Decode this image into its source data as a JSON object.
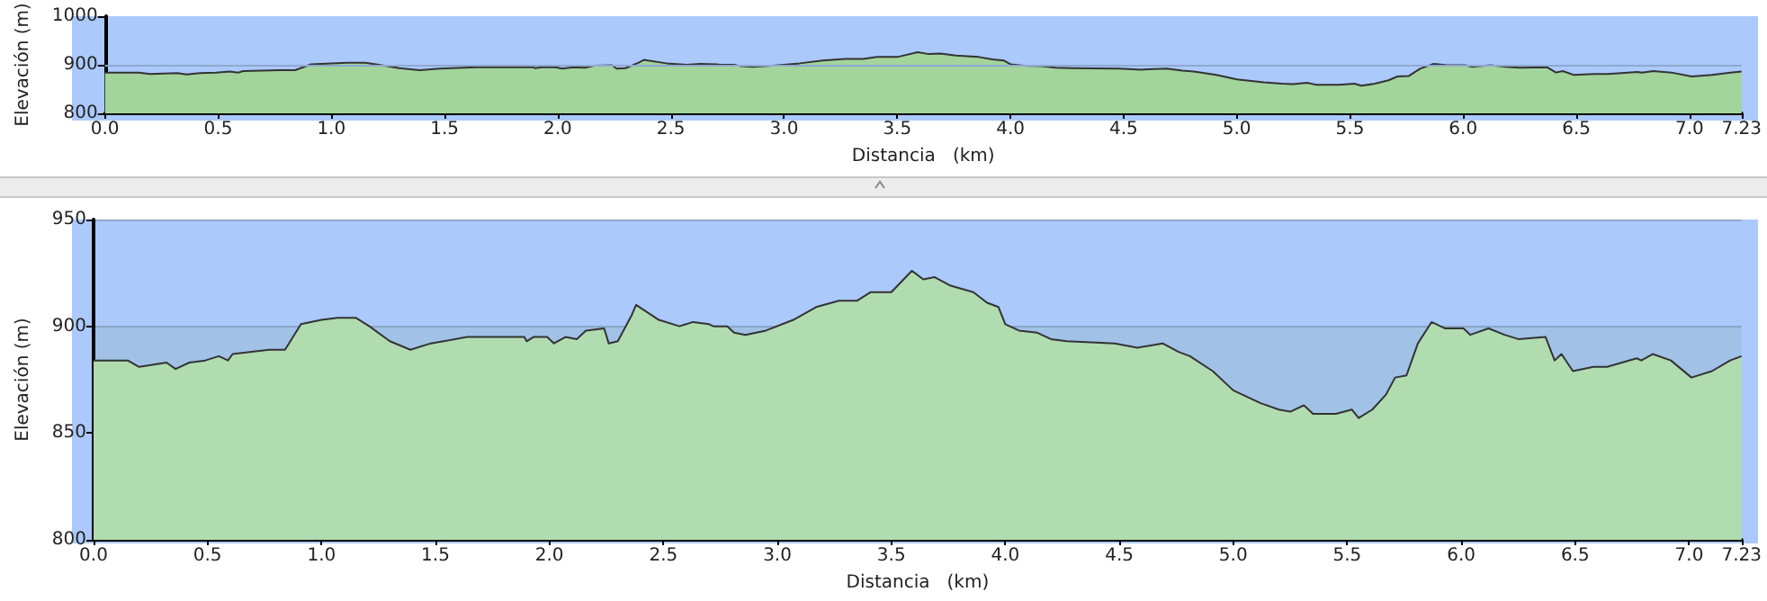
{
  "chart_data": [
    {
      "type": "area",
      "xlabel": "Distancia   (km)",
      "ylabel": "Elevación (m)",
      "xlim": [
        0,
        7.23
      ],
      "ylim": [
        800,
        1000
      ],
      "xticks": [
        {
          "value": 0,
          "label": "0.0"
        },
        0.5,
        {
          "value": 1,
          "label": "1.0"
        },
        1.5,
        {
          "value": 2,
          "label": "2.0"
        },
        2.5,
        {
          "value": 3,
          "label": "3.0"
        },
        3.5,
        {
          "value": 4,
          "label": "4.0"
        },
        4.5,
        {
          "value": 5,
          "label": "5.0"
        },
        5.5,
        {
          "value": 6,
          "label": "6.0"
        },
        6.5,
        {
          "value": 7,
          "label": "7.0"
        },
        7.23
      ],
      "yticks": [
        800,
        900,
        1000
      ],
      "marker": "none",
      "ref_lines": [
        {
          "axis": "y",
          "value": 900,
          "color": "#8fa8d0"
        }
      ],
      "series": [
        {
          "color": "#a3d49c",
          "x": [
            0,
            0.15,
            0.2,
            0.32,
            0.36,
            0.42,
            0.49,
            0.55,
            0.59,
            0.61,
            0.77,
            0.84,
            0.91,
            1.0,
            1.07,
            1.15,
            1.21,
            1.3,
            1.39,
            1.48,
            1.64,
            1.89,
            1.9,
            1.93,
            1.99,
            2.02,
            2.07,
            2.12,
            2.16,
            2.24,
            2.26,
            2.3,
            2.36,
            2.38,
            2.48,
            2.57,
            2.63,
            2.7,
            2.72,
            2.78,
            2.81,
            2.86,
            2.95,
            3.07,
            3.17,
            3.27,
            3.35,
            3.41,
            3.47,
            3.5,
            3.59,
            3.64,
            3.69,
            3.76,
            3.86,
            3.92,
            3.97,
            4.0,
            4.06,
            4.14,
            4.2,
            4.27,
            4.48,
            4.58,
            4.69,
            4.76,
            4.81,
            4.91,
            5.0,
            5.12,
            5.2,
            5.25,
            5.31,
            5.35,
            5.45,
            5.52,
            5.55,
            5.61,
            5.67,
            5.71,
            5.76,
            5.81,
            5.87,
            5.93,
            6.01,
            6.04,
            6.12,
            6.19,
            6.25,
            6.37,
            6.41,
            6.44,
            6.49,
            6.58,
            6.64,
            6.77,
            6.79,
            6.84,
            6.92,
            7.01,
            7.1,
            7.18,
            7.23
          ],
          "values": [
            884,
            884,
            881,
            883,
            880,
            883,
            884,
            886,
            884,
            887,
            889,
            889,
            901,
            903,
            904,
            904,
            900,
            893,
            889,
            892,
            895,
            895,
            893,
            895,
            895,
            892,
            895,
            894,
            898,
            899,
            892,
            893,
            905,
            910,
            903,
            900,
            902,
            901,
            900,
            900,
            897,
            896,
            898,
            903,
            909,
            912,
            912,
            916,
            916,
            916,
            926,
            922,
            923,
            919,
            916,
            911,
            909,
            901,
            898,
            897,
            894,
            893,
            892,
            890,
            892,
            888,
            886,
            879,
            870,
            864,
            861,
            860,
            863,
            859,
            859,
            861,
            857,
            861,
            868,
            876,
            877,
            892,
            902,
            899,
            899,
            896,
            899,
            896,
            894,
            895,
            884,
            887,
            879,
            881,
            881,
            885,
            884,
            887,
            884,
            876,
            879,
            884,
            886
          ]
        }
      ]
    },
    {
      "type": "area",
      "xlabel": "Distancia   (km)",
      "ylabel": "Elevación (m)",
      "xlim": [
        0,
        7.23
      ],
      "ylim": [
        800,
        950
      ],
      "xticks": [
        {
          "value": 0,
          "label": "0.0"
        },
        0.5,
        {
          "value": 1,
          "label": "1.0"
        },
        1.5,
        {
          "value": 2,
          "label": "2.0"
        },
        2.5,
        {
          "value": 3,
          "label": "3.0"
        },
        3.5,
        {
          "value": 4,
          "label": "4.0"
        },
        4.5,
        {
          "value": 5,
          "label": "5.0"
        },
        5.5,
        {
          "value": 6,
          "label": "6.0"
        },
        6.5,
        {
          "value": 7,
          "label": "7.0"
        },
        7.23
      ],
      "yticks": [
        800,
        850,
        900,
        950
      ],
      "grid": "y",
      "marker": "none",
      "bands": [
        {
          "axis": "y",
          "from": 850,
          "to": 900,
          "color": "#5e8f5a"
        }
      ],
      "series": [
        {
          "color": "#b1dcb0",
          "x": [
            0,
            0.15,
            0.2,
            0.32,
            0.36,
            0.42,
            0.49,
            0.55,
            0.59,
            0.61,
            0.77,
            0.84,
            0.91,
            1.0,
            1.07,
            1.15,
            1.21,
            1.3,
            1.39,
            1.48,
            1.64,
            1.89,
            1.9,
            1.93,
            1.99,
            2.02,
            2.07,
            2.12,
            2.16,
            2.24,
            2.26,
            2.3,
            2.36,
            2.38,
            2.48,
            2.57,
            2.63,
            2.7,
            2.72,
            2.78,
            2.81,
            2.86,
            2.95,
            3.07,
            3.17,
            3.27,
            3.35,
            3.41,
            3.47,
            3.5,
            3.59,
            3.64,
            3.69,
            3.76,
            3.86,
            3.92,
            3.97,
            4.0,
            4.06,
            4.14,
            4.2,
            4.27,
            4.48,
            4.58,
            4.69,
            4.76,
            4.81,
            4.91,
            5.0,
            5.12,
            5.2,
            5.25,
            5.31,
            5.35,
            5.45,
            5.52,
            5.55,
            5.61,
            5.67,
            5.71,
            5.76,
            5.81,
            5.87,
            5.93,
            6.01,
            6.04,
            6.12,
            6.19,
            6.25,
            6.37,
            6.41,
            6.44,
            6.49,
            6.58,
            6.64,
            6.77,
            6.79,
            6.84,
            6.92,
            7.01,
            7.1,
            7.18,
            7.23
          ],
          "values": [
            884,
            884,
            881,
            883,
            880,
            883,
            884,
            886,
            884,
            887,
            889,
            889,
            901,
            903,
            904,
            904,
            900,
            893,
            889,
            892,
            895,
            895,
            893,
            895,
            895,
            892,
            895,
            894,
            898,
            899,
            892,
            893,
            905,
            910,
            903,
            900,
            902,
            901,
            900,
            900,
            897,
            896,
            898,
            903,
            909,
            912,
            912,
            916,
            916,
            916,
            926,
            922,
            923,
            919,
            916,
            911,
            909,
            901,
            898,
            897,
            894,
            893,
            892,
            890,
            892,
            888,
            886,
            879,
            870,
            864,
            861,
            860,
            863,
            859,
            859,
            861,
            857,
            861,
            868,
            876,
            877,
            892,
            902,
            899,
            899,
            896,
            899,
            896,
            894,
            895,
            884,
            887,
            879,
            881,
            881,
            885,
            884,
            887,
            884,
            876,
            879,
            884,
            886
          ]
        }
      ]
    }
  ]
}
